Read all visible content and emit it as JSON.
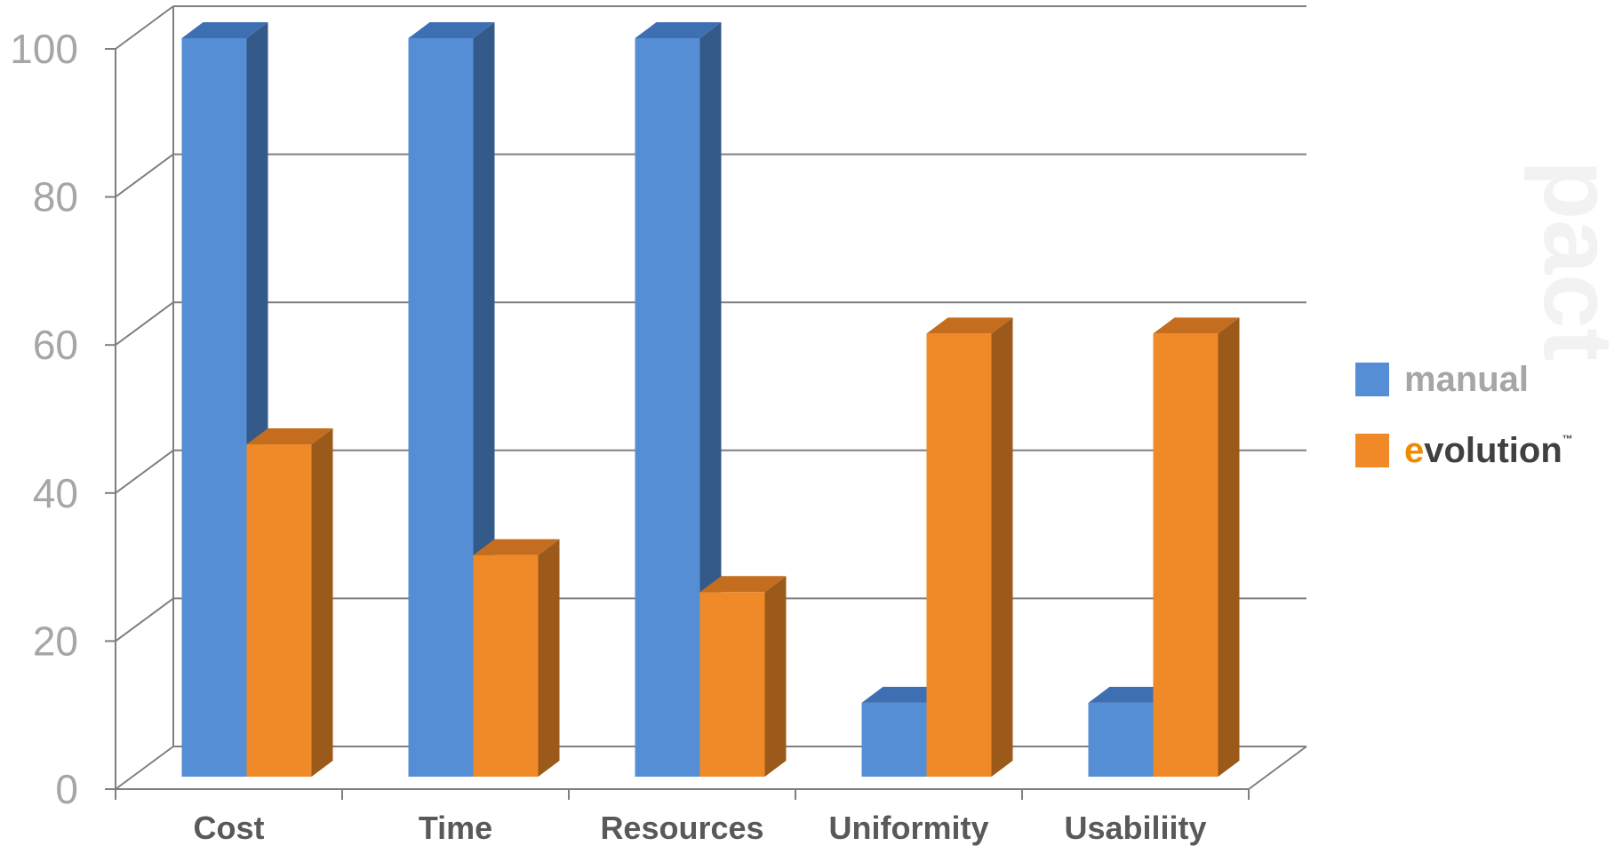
{
  "chart_data": {
    "type": "bar",
    "categories": [
      "Cost",
      "Time",
      "Resources",
      "Uniformity",
      "Usabiliity"
    ],
    "series": [
      {
        "name": "manual",
        "values": [
          100,
          100,
          100,
          10,
          10
        ]
      },
      {
        "name": "evolution",
        "values": [
          45,
          30,
          25,
          60,
          60
        ]
      }
    ],
    "yticks": [
      "0",
      "20",
      "40",
      "60",
      "80",
      "100"
    ],
    "ylim": [
      0,
      100
    ],
    "grid": true,
    "legend_position": "right",
    "three_d": true,
    "colors": {
      "manual_front": "#558ed5",
      "manual_side": "#345a8a",
      "manual_top": "#3f6fb3",
      "evolution_front": "#f08a29",
      "evolution_side": "#9c5a1a",
      "evolution_top": "#c46d1f",
      "grid": "#7f7f7f",
      "tick_text": "#a6a6a6",
      "category_text": "#595959",
      "legend_manual_text": "#a6a6a6",
      "legend_evolution_e": "#f08a00",
      "legend_evolution_text": "#404040"
    },
    "legend": {
      "manual_label": "manual",
      "evolution_first_letter": "e",
      "evolution_rest": "volution",
      "trademark": "™"
    },
    "watermark_text": "pact"
  }
}
